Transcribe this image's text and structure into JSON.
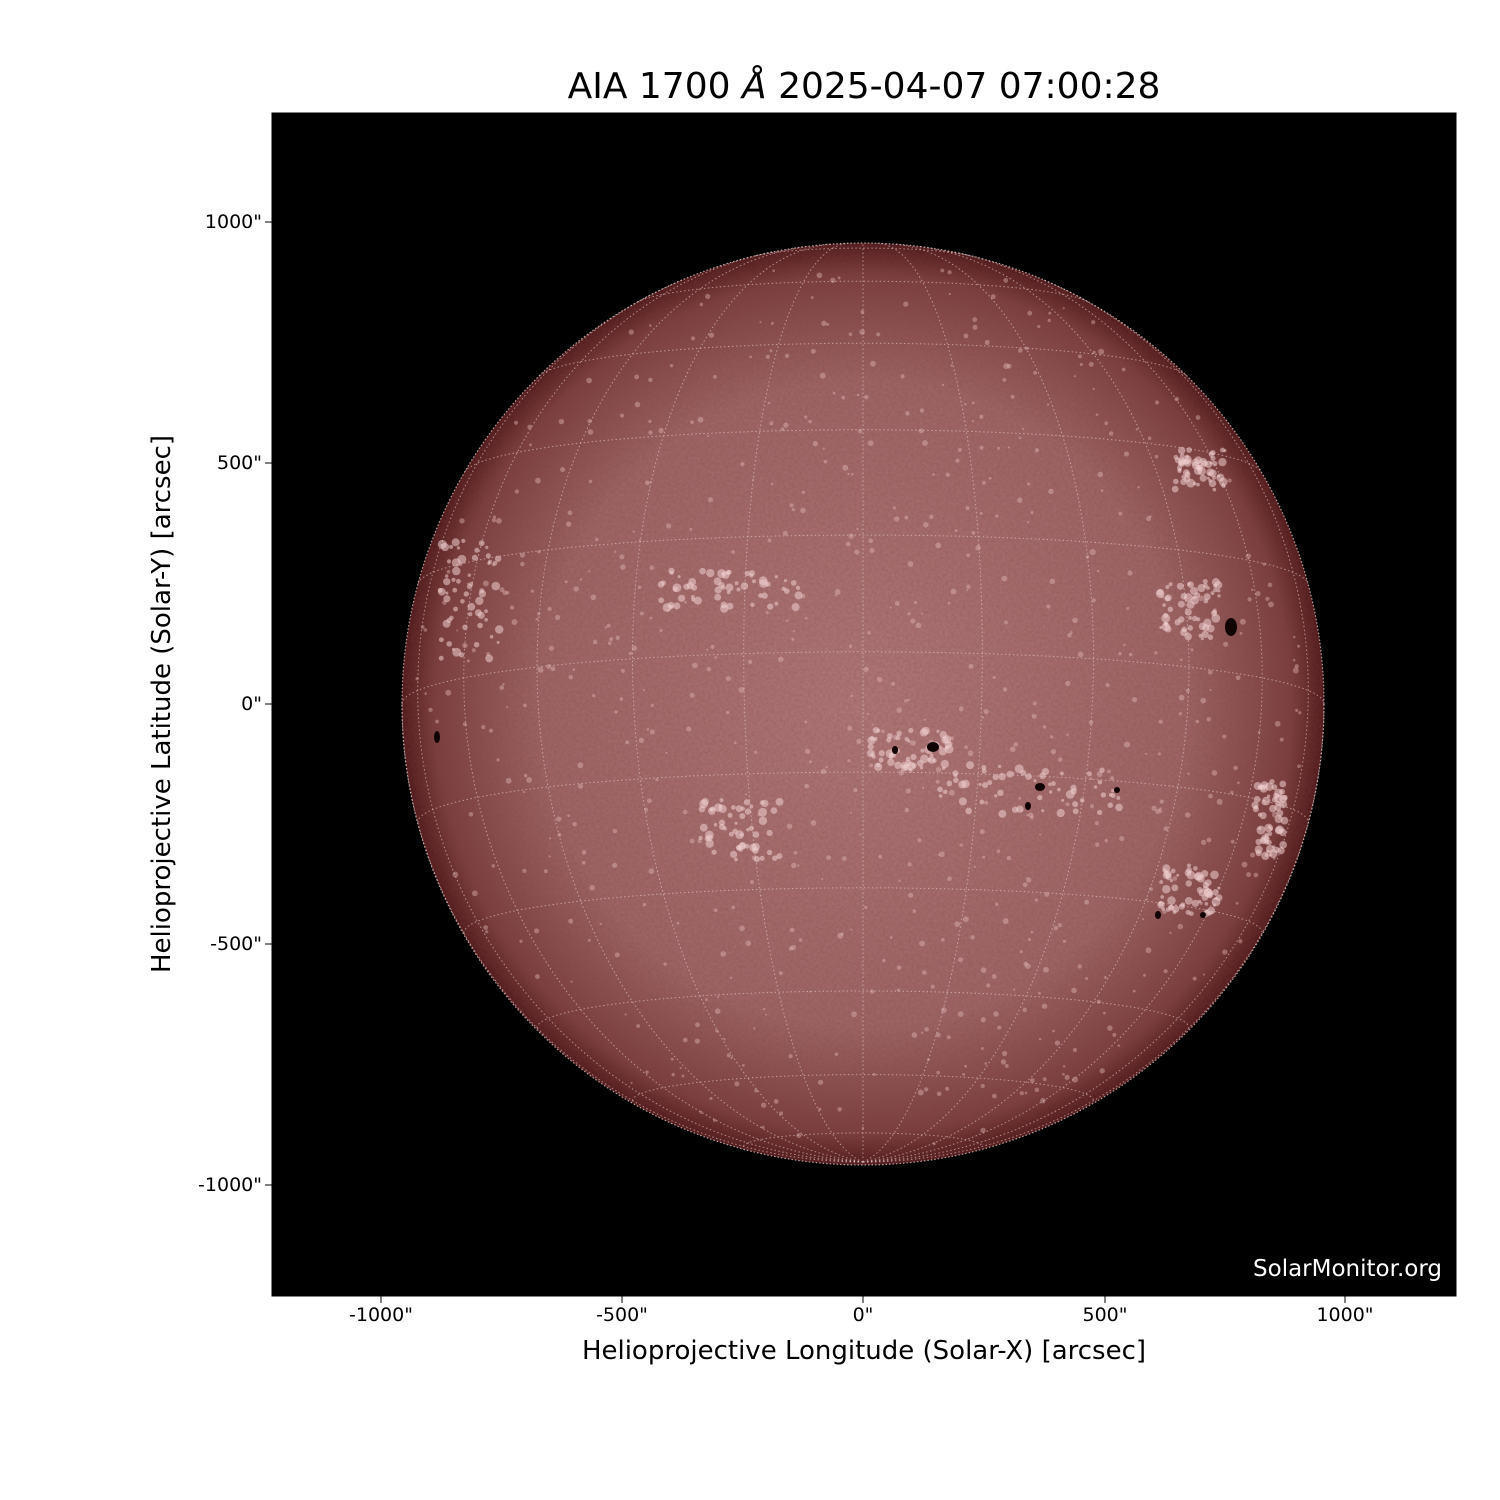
{
  "title": {
    "instrument": "AIA 1700",
    "unit": "Å",
    "datetime": "2025-04-07 07:00:28"
  },
  "xlabel": "Helioprojective Longitude (Solar-X) [arcsec]",
  "ylabel": "Helioprojective Latitude (Solar-Y) [arcsec]",
  "x_ticks": [
    "-1000\"",
    "-500\"",
    "0\"",
    "500\"",
    "1000\""
  ],
  "y_ticks": [
    "1000\"",
    "500\"",
    "0\"",
    "-500\"",
    "-1000\""
  ],
  "watermark": "SolarMonitor.org",
  "colors": {
    "background": "#000000",
    "disk": "#a06868",
    "limb": "#5a2020",
    "grid": "#e8d0d0"
  }
}
